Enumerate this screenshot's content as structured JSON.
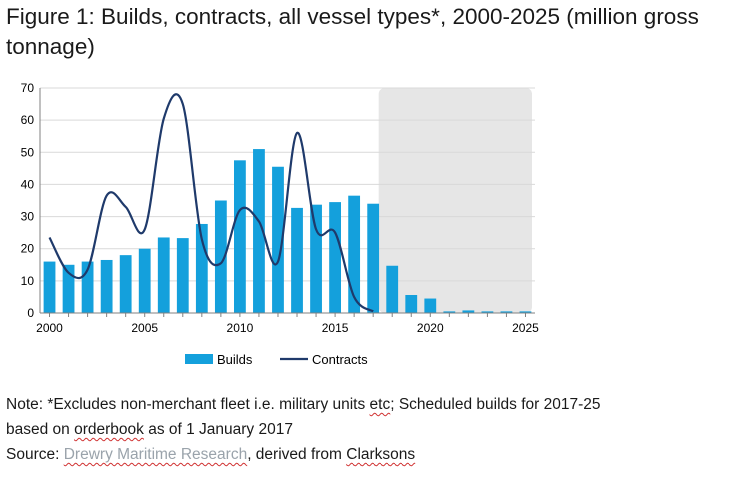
{
  "title": "Figure 1: Builds, contracts, all vessel types*, 2000-2025 (million gross tonnage)",
  "colors": {
    "builds": "#14a0dc",
    "contracts": "#1f3a6b",
    "forecast_shade": "#e6e6e6",
    "grid": "#d9d9d9"
  },
  "chart_data": {
    "type": "bar",
    "x_start": 2000,
    "x_end": 2025,
    "ylim": [
      0,
      70
    ],
    "yticks": [
      0,
      10,
      20,
      30,
      40,
      50,
      60,
      70
    ],
    "xticks": [
      2000,
      2005,
      2010,
      2015,
      2020,
      2025
    ],
    "grid": true,
    "legend_position": "bottom",
    "shaded_period": [
      2017,
      2025
    ],
    "series": [
      {
        "name": "Builds",
        "type": "bar",
        "x": [
          2000,
          2001,
          2002,
          2003,
          2004,
          2005,
          2006,
          2007,
          2008,
          2009,
          2010,
          2011,
          2012,
          2013,
          2014,
          2015,
          2016,
          2017,
          2018,
          2019,
          2020,
          2021,
          2022,
          2023,
          2024,
          2025
        ],
        "values": [
          16,
          15,
          16,
          16.5,
          18,
          20,
          23.5,
          23.3,
          27.7,
          35,
          47.5,
          51,
          45.5,
          32.7,
          33.7,
          34.5,
          36.5,
          34,
          14.7,
          5.6,
          4.5,
          0.5,
          0.8,
          0.5,
          0.5,
          0.5
        ]
      },
      {
        "name": "Contracts",
        "type": "line",
        "x": [
          2000,
          2001,
          2002,
          2003,
          2004,
          2005,
          2006,
          2007,
          2008,
          2009,
          2010,
          2011,
          2012,
          2013,
          2014,
          2015,
          2016,
          2017
        ],
        "values": [
          23.5,
          12.5,
          13.5,
          36.5,
          33,
          26,
          60.5,
          65,
          23,
          15.5,
          32,
          28.5,
          16,
          56,
          26,
          25,
          5,
          0.5
        ]
      }
    ]
  },
  "notes": {
    "line1_a": "Note: *Excludes non-merchant fleet i.e. military units ",
    "line1_b": "etc",
    "line1_c": "; Scheduled builds for 2017-25",
    "line2_a": "based on ",
    "line2_b": "orderbook",
    "line2_c": " as of 1 January 2017",
    "line3_a": "Source: ",
    "line3_b": "Drewry Maritime Research",
    "line3_c": ", derived from ",
    "line3_d": "Clarksons"
  }
}
